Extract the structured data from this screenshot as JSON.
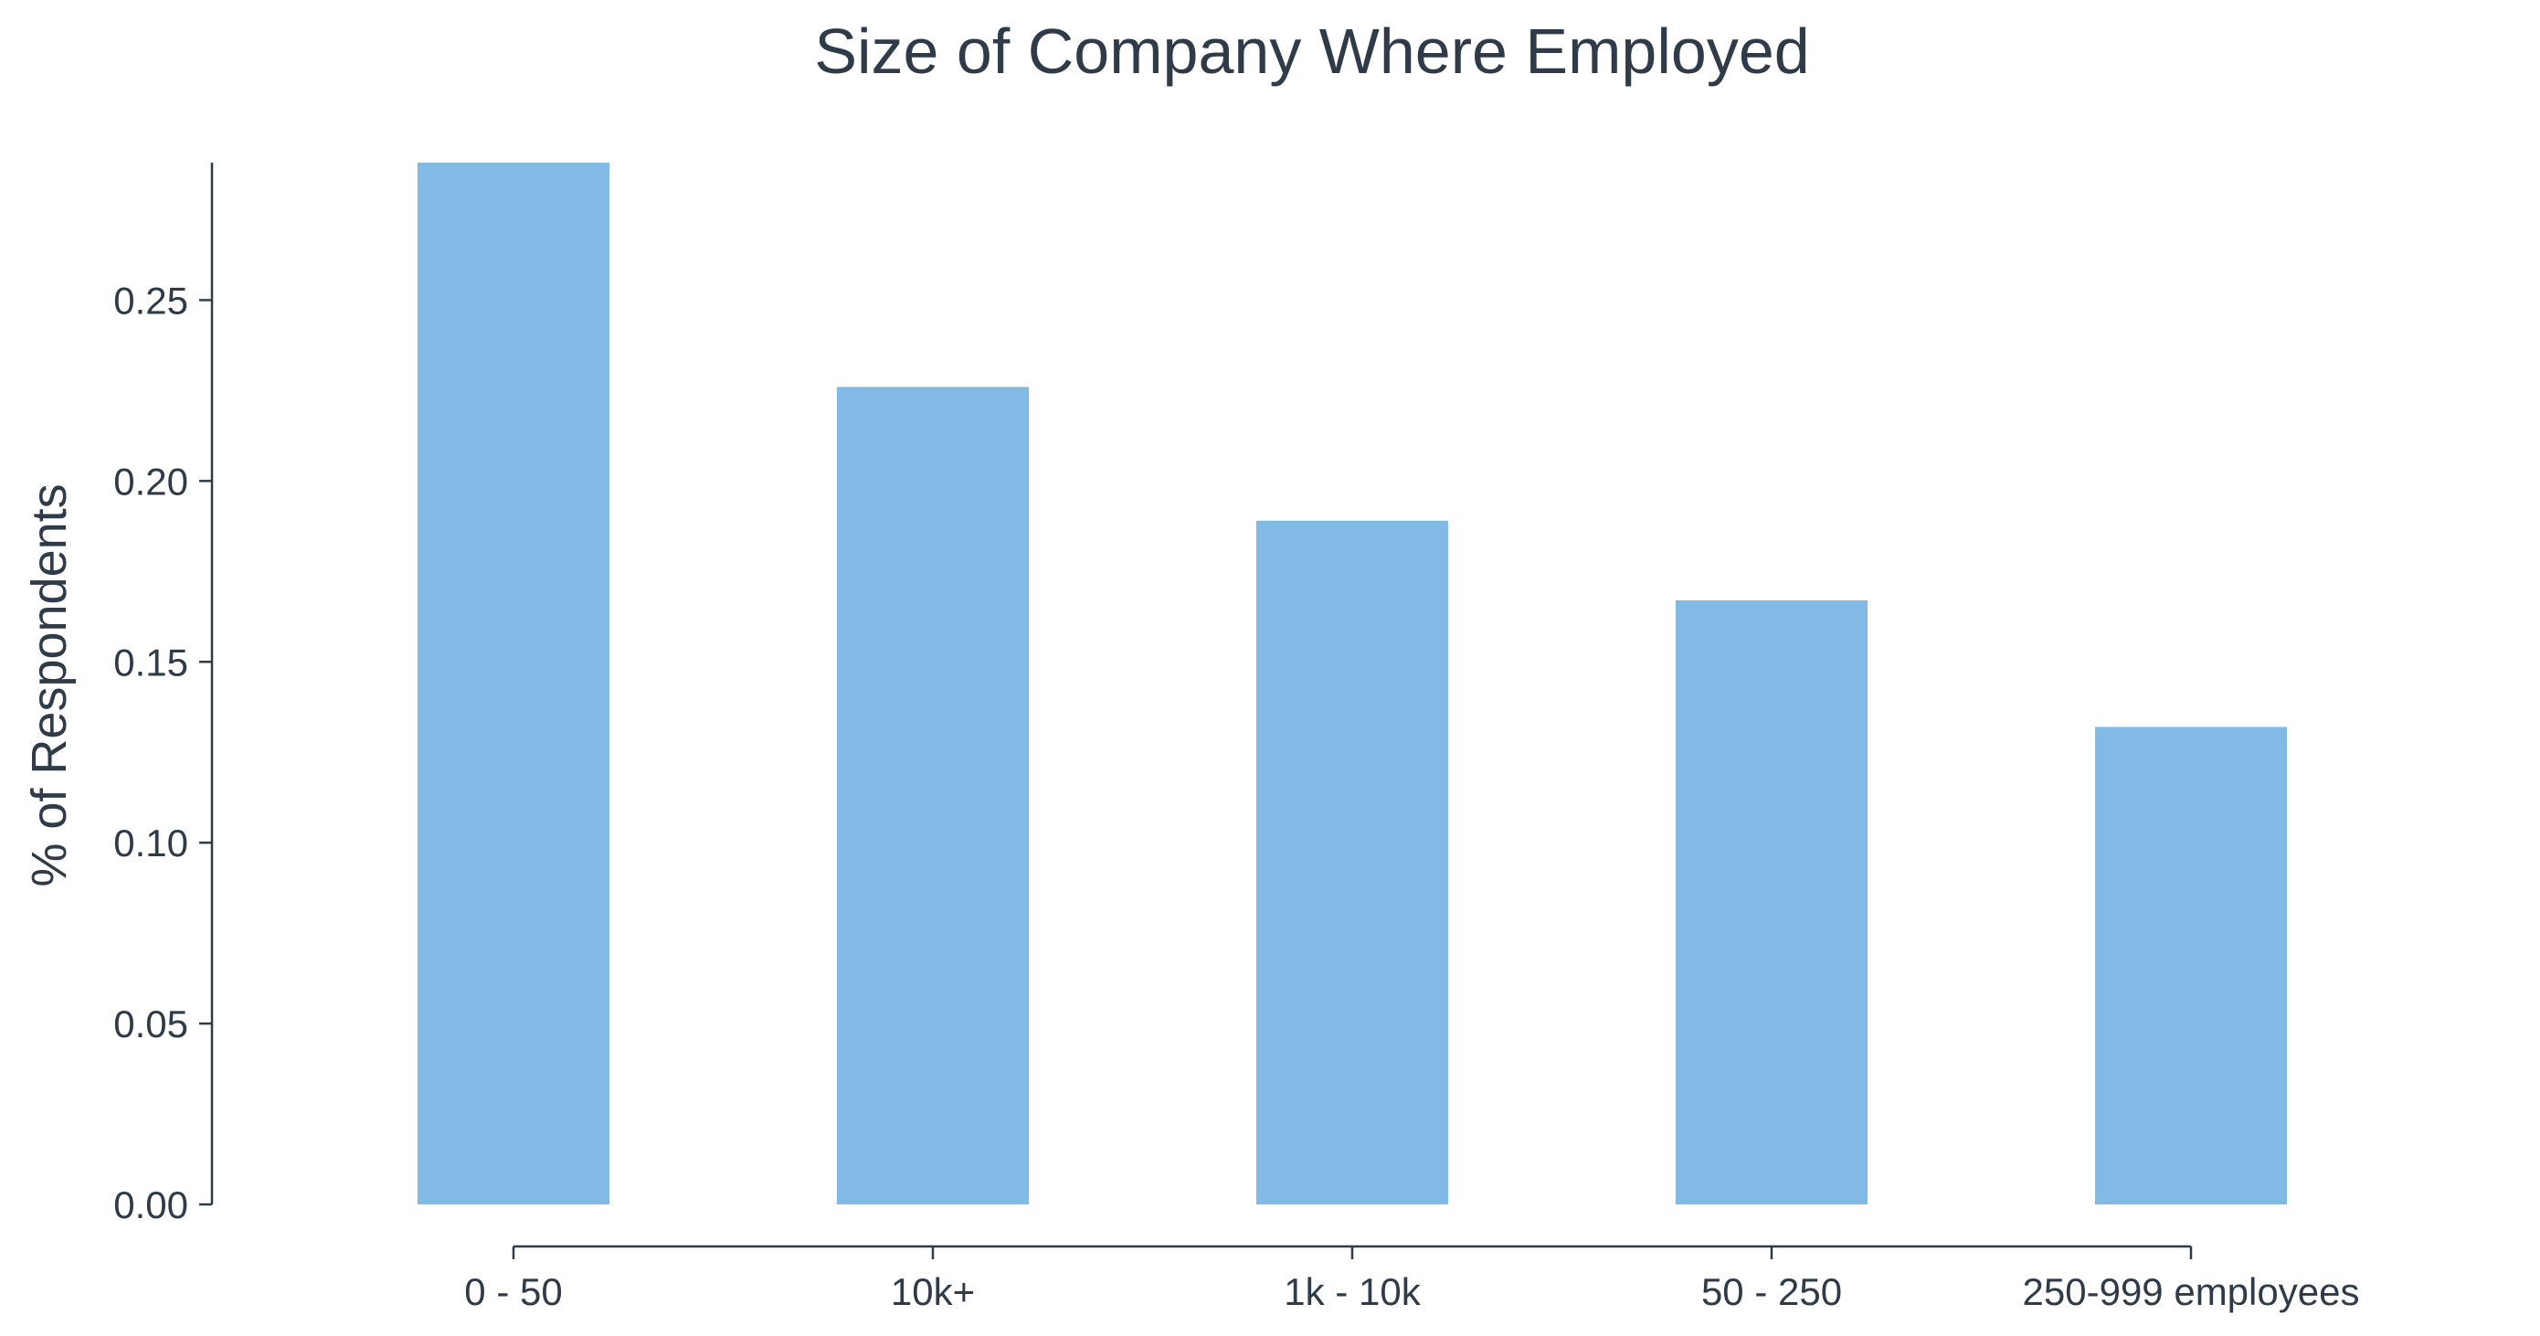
{
  "chart_data": {
    "type": "bar",
    "title": "Size of Company Where Employed",
    "xlabel": "",
    "ylabel": "% of Respondents",
    "categories": [
      "0 - 50",
      "10k+",
      "1k - 10k",
      "50 - 250",
      "250-999 employees"
    ],
    "values": [
      0.288,
      0.226,
      0.189,
      0.167,
      0.132
    ],
    "ylim": [
      0,
      0.288
    ],
    "yticks": [
      0.0,
      0.05,
      0.1,
      0.15,
      0.2,
      0.25
    ],
    "ytick_labels": [
      "0.00",
      "0.05",
      "0.10",
      "0.15",
      "0.20",
      "0.25"
    ],
    "bar_color": "#80bae5",
    "axis_color": "#2f3b48",
    "grid": false,
    "legend": "none"
  }
}
